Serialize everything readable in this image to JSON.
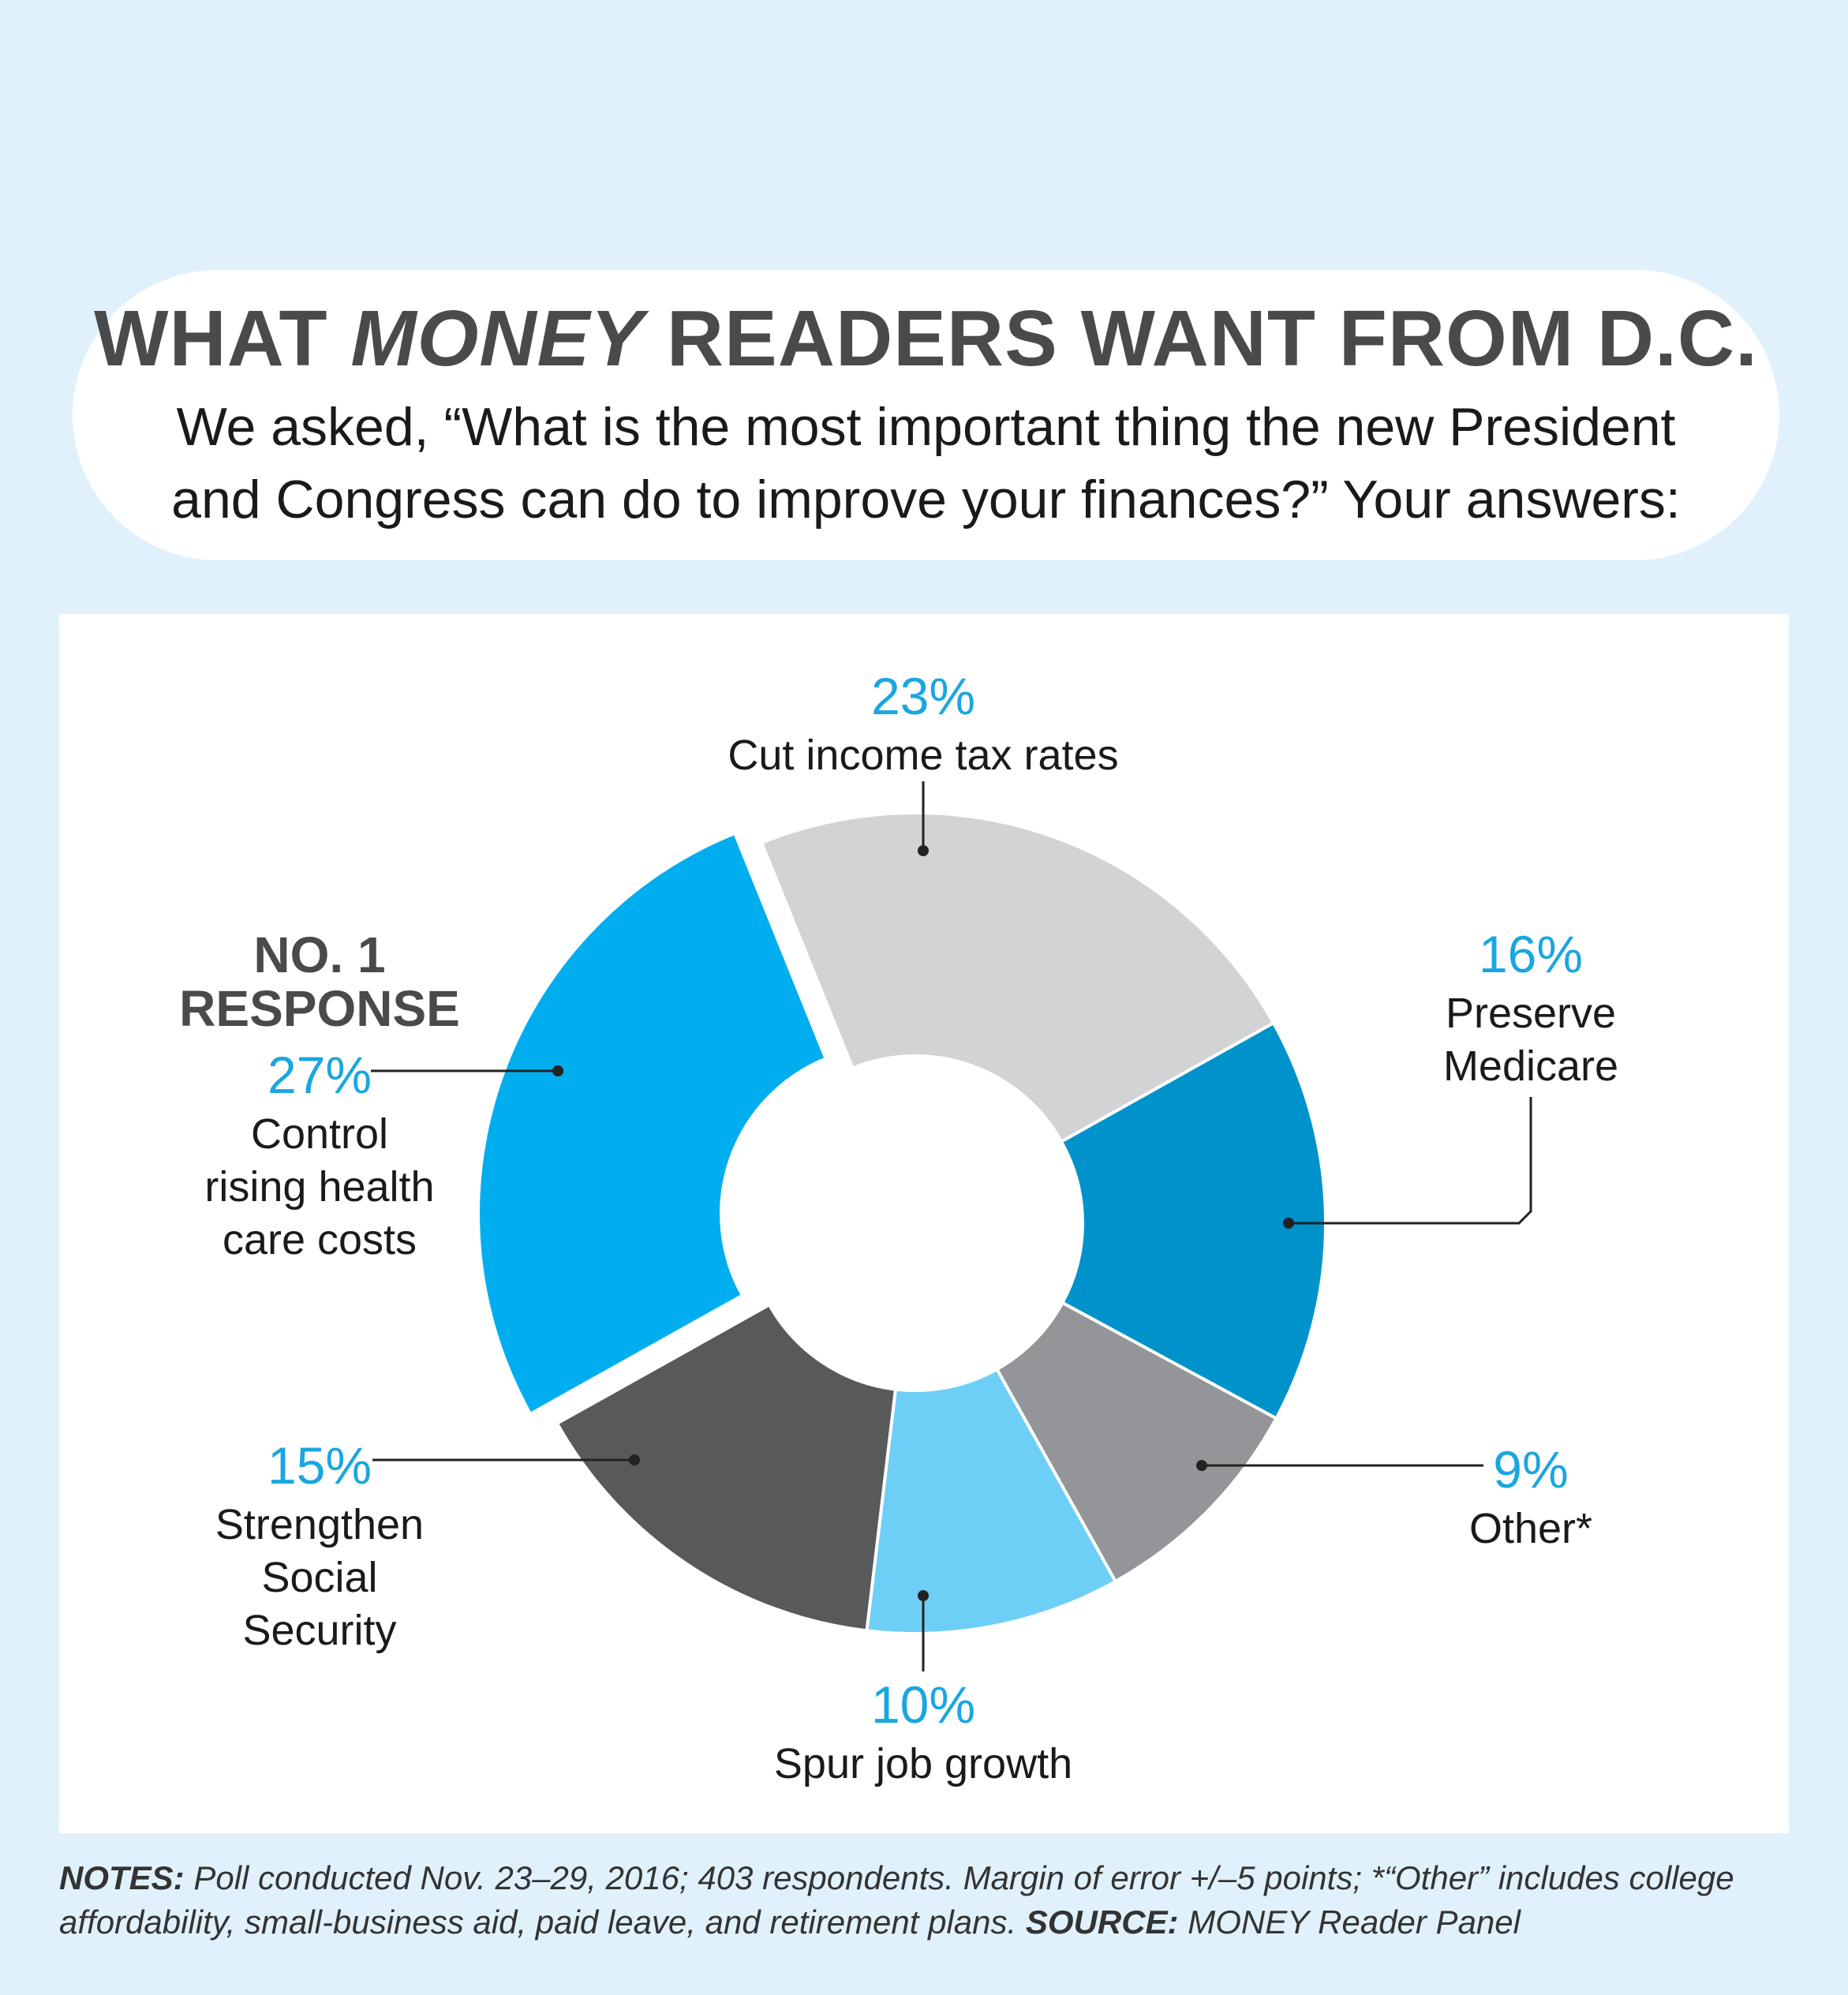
{
  "header": {
    "title_pre": "WHAT ",
    "title_italic": "MONEY",
    "title_post": " READERS WANT FROM D.C.",
    "subtitle_line1": "We asked, “What is the most important thing the new President",
    "subtitle_line2": "and Congress can do to improve your finances?” Your answers:"
  },
  "highlight": {
    "line1": "NO. 1",
    "line2": "RESPONSE"
  },
  "notes": {
    "notes_label": "NOTES:",
    "notes_line1": " Poll conducted Nov. 23–29, 2016; 403 respondents. Margin of error +/–5 points; *“Other” includes college",
    "notes_line2": "affordability, small-business aid, paid leave, and retirement plans. ",
    "source_label": "SOURCE:",
    "source_text": " MONEY Reader Panel"
  },
  "colors": {
    "background": "#e1f1fc",
    "percent_text": "#1aa6e0",
    "title_text": "#4a4a4a"
  },
  "chart_data": {
    "type": "pie",
    "donut": true,
    "total": 100,
    "slices": [
      {
        "label_lines": [
          "Cut income tax rates"
        ],
        "pct_text": "23%",
        "value": 23,
        "color": "#d1d3d4"
      },
      {
        "label_lines": [
          "Preserve",
          "Medicare"
        ],
        "pct_text": "16%",
        "value": 16,
        "color": "#0092cb"
      },
      {
        "label_lines": [
          "Other*"
        ],
        "pct_text": "9%",
        "value": 9,
        "color": "#939598"
      },
      {
        "label_lines": [
          "Spur job growth"
        ],
        "pct_text": "10%",
        "value": 10,
        "color": "#6dcff6"
      },
      {
        "label_lines": [
          "Strengthen",
          "Social",
          "Security"
        ],
        "pct_text": "15%",
        "value": 15,
        "color": "#58595b"
      },
      {
        "label_lines": [
          "Control",
          "rising health",
          "care costs"
        ],
        "pct_text": "27%",
        "value": 27,
        "color": "#00aeef",
        "exploded": true
      }
    ]
  }
}
